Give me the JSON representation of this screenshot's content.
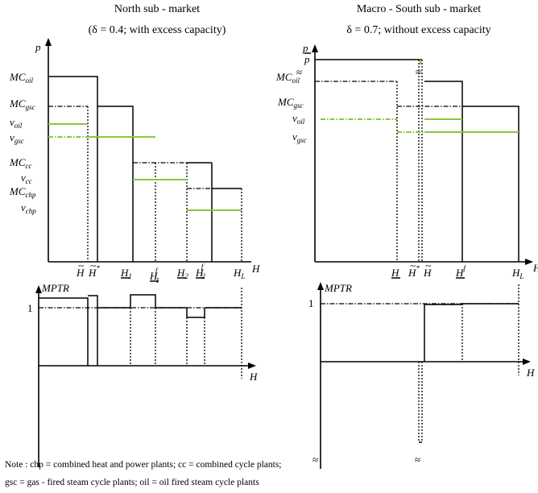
{
  "north": {
    "title": "North sub - market",
    "subtitle": "(δ = 0.4; with excess capacity)",
    "y_axis": "p",
    "x_axis": "H",
    "labels": {
      "mc_oil": "MC",
      "mc_oil_sub": "oil",
      "mc_gsc": "MC",
      "mc_gsc_sub": "gsc",
      "v_oil": "v",
      "v_oil_sub": "oil",
      "v_gsc": "v",
      "v_gsc_sub": "gsc",
      "mc_cc": "MC",
      "mc_cc_sub": "cc",
      "v_cc": "v",
      "v_cc_sub": "cc",
      "mc_chp": "MC",
      "mc_chp_sub": "chp",
      "v_chp": "v",
      "v_chp_sub": "chp"
    },
    "ticks": {
      "h_tilde": "H",
      "h_star": "H",
      "h_star_sup": "*",
      "h1": "H",
      "h1_sub": "1",
      "h1f": "H",
      "h1f_sub": "1",
      "h1f_sup": "f",
      "h2": "H",
      "h2_sub": "2",
      "h2f": "H",
      "h2f_sub": "2",
      "h2f_sup": "f",
      "hl": "H",
      "hl_sub": "L"
    },
    "mptr_axis": "MPTR",
    "mptr_one": "1",
    "mptr_x": "H"
  },
  "south": {
    "title": "Macro - South sub - market",
    "subtitle": "δ = 0.7; without excess capacity",
    "y_axis": "p",
    "p_bar": "p",
    "x_axis": "H",
    "labels": {
      "mc_oil": "MC",
      "mc_oil_sub": "oil",
      "mc_gsc": "MC",
      "mc_gsc_sub": "gsc",
      "v_oil": "v",
      "v_oil_sub": "oil",
      "v_gsc": "v",
      "v_gsc_sub": "gsc"
    },
    "ticks": {
      "h_under": "H",
      "h_tilde_star": "H",
      "h_tilde_star_sup": "*",
      "h_tilde": "H",
      "hf": "H",
      "hf_sup": "f",
      "hl": "H",
      "hl_sub": "L"
    },
    "mptr_axis": "MPTR",
    "mptr_one": "1",
    "mptr_x": "H",
    "break_mark": "≈"
  },
  "note_line1": "Note : chp = combined heat and power plants; cc = combined cycle plants;",
  "note_line2": "gsc = gas - fired steam cycle plants; oil = oil fired steam cycle plants"
}
